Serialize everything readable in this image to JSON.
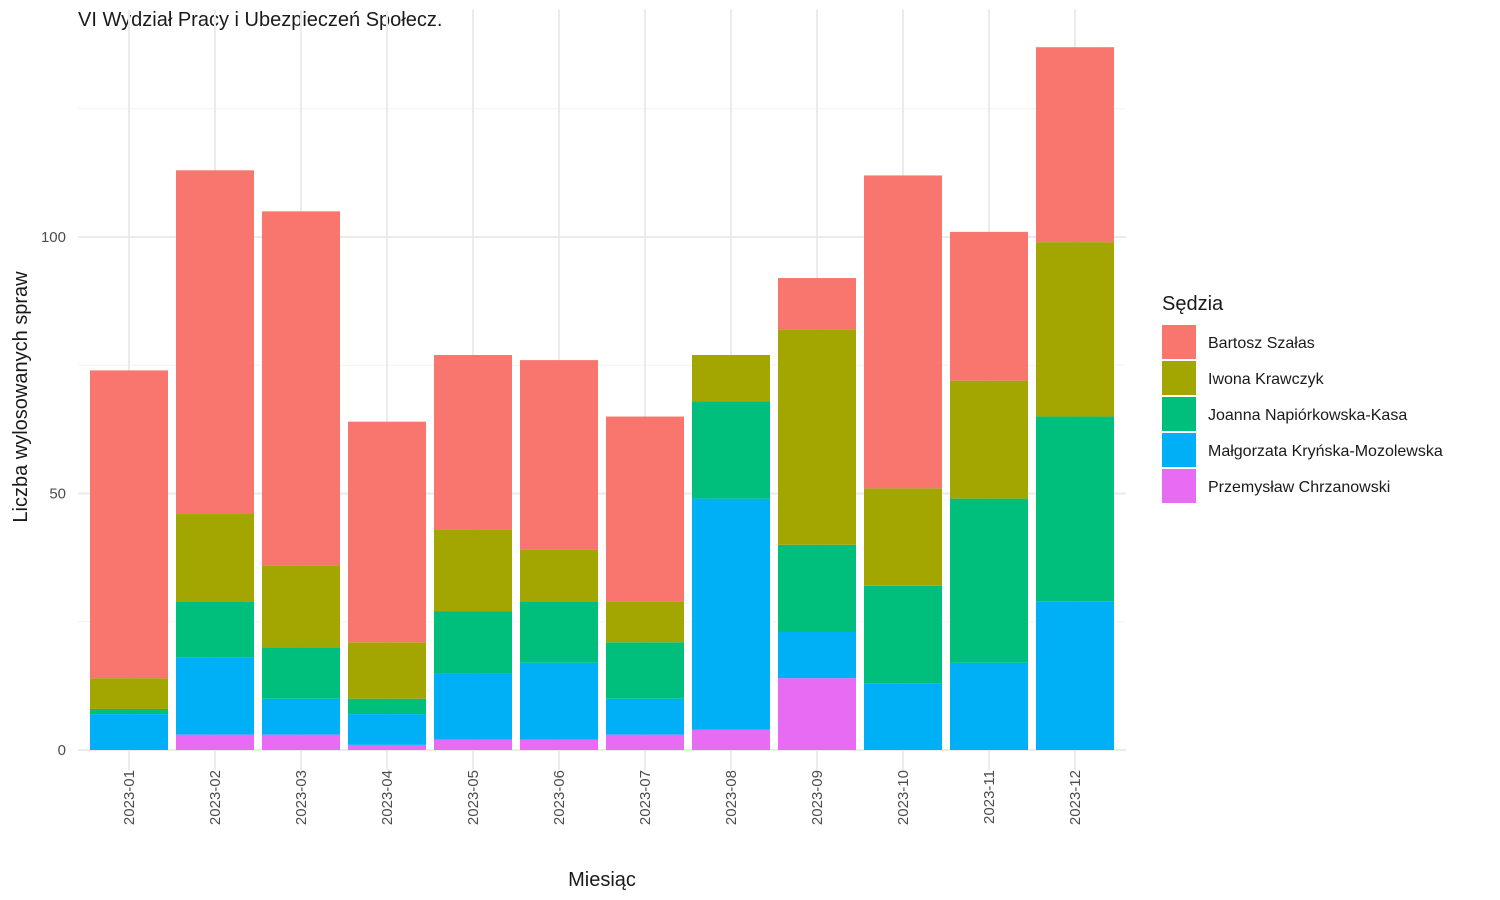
{
  "chart_data": {
    "type": "bar",
    "stacked": true,
    "title": "VI Wydział Pracy i Ubezpieczeń Społecz.",
    "xlabel": "Miesiąc",
    "ylabel": "Liczba wylosowanych spraw",
    "ylim": [
      0,
      140
    ],
    "y_ticks": [
      0,
      50,
      100
    ],
    "grid": true,
    "legend_position": "right",
    "legend_title": "Sędzia",
    "categories": [
      "2023-01",
      "2023-02",
      "2023-03",
      "2023-04",
      "2023-05",
      "2023-06",
      "2023-07",
      "2023-08",
      "2023-09",
      "2023-10",
      "2023-11",
      "2023-12"
    ],
    "series": [
      {
        "name": "Przemysław Chrzanowski",
        "color": "#E76BF3",
        "values": [
          0,
          3,
          3,
          1,
          2,
          2,
          3,
          4,
          14,
          0,
          0,
          0
        ]
      },
      {
        "name": "Małgorzata Kryńska-Mozolewska",
        "color": "#00B0F6",
        "values": [
          7,
          15,
          7,
          6,
          13,
          15,
          7,
          45,
          9,
          13,
          17,
          29
        ]
      },
      {
        "name": "Joanna Napiórkowska-Kasa",
        "color": "#00BF7D",
        "values": [
          1,
          11,
          10,
          3,
          12,
          12,
          11,
          19,
          17,
          19,
          32,
          36
        ]
      },
      {
        "name": "Iwona Krawczyk",
        "color": "#A3A500",
        "values": [
          6,
          17,
          16,
          11,
          16,
          10,
          8,
          9,
          42,
          19,
          23,
          34
        ]
      },
      {
        "name": "Bartosz Szałas",
        "color": "#F8766D",
        "values": [
          60,
          67,
          69,
          43,
          34,
          37,
          36,
          0,
          10,
          61,
          29,
          38
        ]
      }
    ],
    "legend_order": [
      "Bartosz Szałas",
      "Iwona Krawczyk",
      "Joanna Napiórkowska-Kasa",
      "Małgorzata Kryńska-Mozolewska",
      "Przemysław Chrzanowski"
    ]
  }
}
